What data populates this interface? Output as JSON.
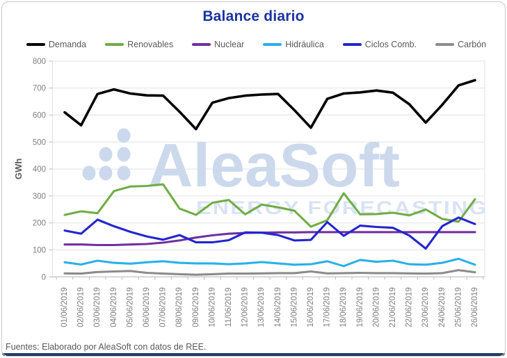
{
  "title": "Balance diario",
  "footer": "Fuentes: Elaborado por AleaSoft con datos de REE.",
  "watermark": {
    "brand": "AleaSoft",
    "tagline": "ENERGY FORECASTING"
  },
  "colors": {
    "title": "#1b339e",
    "legend_text": "#595959",
    "axis_text": "#7f7f7f",
    "gridline": "#e2e2e2",
    "axis_line": "#b9b9b9",
    "frame_border": "#c9c9c9",
    "bottom_bar": "#1f3864",
    "watermark": "#ccd9ed"
  },
  "chart_data": {
    "type": "line",
    "title": "Balance diario",
    "xlabel": "",
    "ylabel": "GWh",
    "ylim": [
      0,
      800
    ],
    "ytick_step": 100,
    "grid": true,
    "legend_position": "top",
    "categories": [
      "01/06/2019",
      "02/06/2019",
      "03/06/2019",
      "04/06/2019",
      "05/06/2019",
      "06/06/2019",
      "07/06/2019",
      "08/06/2019",
      "09/06/2019",
      "10/06/2019",
      "11/06/2019",
      "12/06/2019",
      "13/06/2019",
      "14/06/2019",
      "15/06/2019",
      "16/06/2019",
      "17/06/2019",
      "18/06/2019",
      "19/06/2019",
      "20/06/2019",
      "21/06/2019",
      "22/06/2019",
      "23/06/2019",
      "24/06/2019",
      "25/06/2019",
      "26/06/2019"
    ],
    "series": [
      {
        "name": "Demanda",
        "color": "#000000",
        "width": 3.6,
        "values": [
          610,
          562,
          678,
          695,
          680,
          673,
          672,
          612,
          548,
          646,
          663,
          672,
          676,
          678,
          618,
          553,
          660,
          680,
          684,
          691,
          683,
          640,
          572,
          638,
          710,
          729
        ]
      },
      {
        "name": "Renovables",
        "color": "#70ad47",
        "width": 3.1,
        "values": [
          230,
          243,
          236,
          318,
          335,
          337,
          343,
          253,
          230,
          275,
          285,
          232,
          268,
          258,
          245,
          186,
          210,
          310,
          232,
          233,
          238,
          228,
          250,
          215,
          205,
          288
        ]
      },
      {
        "name": "Nuclear",
        "color": "#7030a0",
        "width": 3.1,
        "values": [
          120,
          120,
          118,
          118,
          120,
          122,
          127,
          135,
          146,
          154,
          160,
          163,
          164,
          165,
          165,
          166,
          166,
          166,
          166,
          166,
          166,
          166,
          166,
          166,
          166,
          166
        ]
      },
      {
        "name": "Hidráulica",
        "color": "#2bb0e8",
        "width": 3.1,
        "values": [
          54,
          46,
          60,
          52,
          49,
          54,
          58,
          52,
          50,
          50,
          47,
          50,
          55,
          50,
          45,
          47,
          58,
          40,
          63,
          56,
          60,
          47,
          45,
          52,
          67,
          45
        ]
      },
      {
        "name": "Ciclos Comb.",
        "color": "#2326cf",
        "width": 3.1,
        "values": [
          172,
          160,
          212,
          188,
          167,
          150,
          138,
          155,
          128,
          128,
          136,
          165,
          164,
          155,
          135,
          137,
          203,
          152,
          190,
          185,
          182,
          153,
          105,
          188,
          220,
          196
        ]
      },
      {
        "name": "Carbón",
        "color": "#8c8c8c",
        "width": 3.1,
        "values": [
          13,
          12,
          18,
          20,
          22,
          15,
          12,
          10,
          8,
          10,
          12,
          12,
          13,
          14,
          14,
          20,
          13,
          14,
          15,
          14,
          14,
          13,
          12,
          14,
          25,
          17
        ]
      }
    ]
  }
}
